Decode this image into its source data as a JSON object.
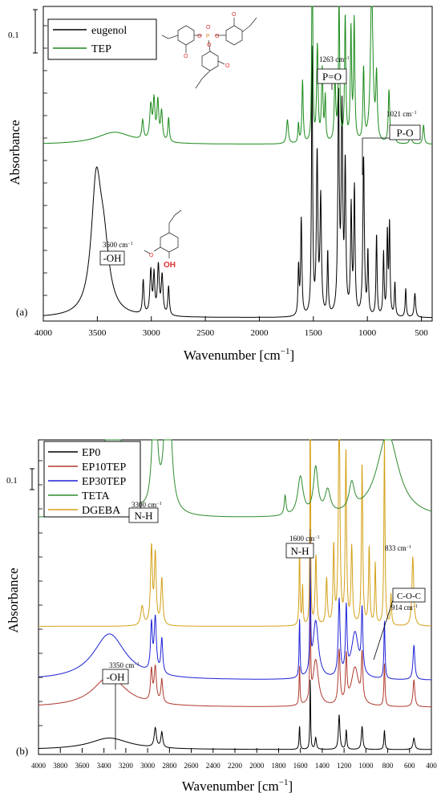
{
  "chart_data": [
    {
      "type": "line",
      "panel_label": "(a)",
      "xlabel": "Wavenumber [cm",
      "xlabel_sup": "−1",
      "xlabel_end": "]",
      "ylabel": "Absorbance",
      "xlim": [
        4000,
        400
      ],
      "x_ticks": [
        "4000",
        "3500",
        "3000",
        "2500",
        "2000",
        "1500",
        "1000",
        "500"
      ],
      "scale_bar_label": "0.1",
      "legend": [
        "eugenol",
        "TEP"
      ],
      "legend_placement": "top-left",
      "colors": {
        "eugenol": "#000000",
        "TEP": "#1a8a1a"
      },
      "series": [
        {
          "name": "eugenol",
          "baseline": 0.0,
          "peaks": [
            [
              3510,
              0.26,
              55
            ],
            [
              3440,
              0.12,
              60
            ],
            [
              3075,
              0.07,
              8
            ],
            [
              3005,
              0.09,
              10
            ],
            [
              2975,
              0.08,
              8
            ],
            [
              2935,
              0.1,
              10
            ],
            [
              2900,
              0.08,
              10
            ],
            [
              2840,
              0.06,
              8
            ],
            [
              1637,
              0.1,
              6
            ],
            [
              1612,
              0.2,
              7
            ],
            [
              1512,
              0.55,
              6
            ],
            [
              1465,
              0.33,
              8
            ],
            [
              1432,
              0.24,
              8
            ],
            [
              1367,
              0.13,
              6
            ],
            [
              1267,
              0.45,
              8
            ],
            [
              1235,
              0.42,
              8
            ],
            [
              1205,
              0.3,
              7
            ],
            [
              1150,
              0.22,
              7
            ],
            [
              1120,
              0.26,
              7
            ],
            [
              1035,
              0.33,
              8
            ],
            [
              995,
              0.13,
              6
            ],
            [
              915,
              0.17,
              6
            ],
            [
              850,
              0.13,
              6
            ],
            [
              815,
              0.17,
              6
            ],
            [
              795,
              0.19,
              6
            ],
            [
              745,
              0.07,
              6
            ],
            [
              645,
              0.06,
              6
            ],
            [
              560,
              0.05,
              8
            ]
          ]
        },
        {
          "name": "TEP",
          "baseline": 0.36,
          "peaks": [
            [
              3340,
              0.025,
              200
            ],
            [
              3080,
              0.04,
              10
            ],
            [
              3005,
              0.07,
              12
            ],
            [
              2975,
              0.08,
              10
            ],
            [
              2940,
              0.08,
              10
            ],
            [
              2905,
              0.06,
              10
            ],
            [
              2840,
              0.05,
              8
            ],
            [
              1740,
              0.05,
              10
            ],
            [
              1638,
              0.04,
              6
            ],
            [
              1600,
              0.13,
              7
            ],
            [
              1510,
              0.5,
              5
            ],
            [
              1463,
              0.2,
              8
            ],
            [
              1418,
              0.15,
              8
            ],
            [
              1390,
              0.09,
              6
            ],
            [
              1300,
              0.13,
              8
            ],
            [
              1262,
              0.3,
              7
            ],
            [
              1205,
              0.26,
              7
            ],
            [
              1152,
              0.23,
              7
            ],
            [
              1122,
              0.25,
              7
            ],
            [
              1035,
              0.15,
              7
            ],
            [
              960,
              0.32,
              14
            ],
            [
              915,
              0.13,
              8
            ],
            [
              800,
              0.11,
              8
            ],
            [
              745,
              0.03,
              6
            ],
            [
              600,
              0.03,
              8
            ],
            [
              480,
              0.04,
              8
            ]
          ]
        }
      ],
      "annotations": [
        {
          "text": "3500 cm",
          "sup": "−1",
          "label": "-OH",
          "x": 3500
        },
        {
          "text": "1263 cm",
          "sup": "−1",
          "label": "P=O",
          "x": 1263
        },
        {
          "text": "1021 cm",
          "sup": "−1",
          "label": "P-O",
          "x": 1021
        }
      ],
      "structure_labels": {
        "oxygen": "O",
        "phosphorus": "P",
        "hydroxyl": "OH"
      }
    },
    {
      "type": "line",
      "panel_label": "(b)",
      "xlabel": "Wavenumber [cm",
      "xlabel_sup": "−1",
      "xlabel_end": "]",
      "ylabel": "Absorbance",
      "xlim": [
        4000,
        400
      ],
      "x_ticks": [
        "4000",
        "3800",
        "3600",
        "3400",
        "3200",
        "3000",
        "2800",
        "2600",
        "2400",
        "2200",
        "2000",
        "1800",
        "1600",
        "1400",
        "1200",
        "1000",
        "800",
        "600",
        "400"
      ],
      "scale_bar_label": "0.1",
      "legend": [
        "EP0",
        "EP10TEP",
        "EP30TEP",
        "TETA",
        "DGEBA"
      ],
      "legend_placement": "top-left",
      "colors": {
        "EP0": "#000000",
        "EP10TEP": "#b03a2e",
        "EP30TEP": "#1f22d6",
        "TETA": "#2e8b2e",
        "DGEBA": "#d4a017"
      },
      "series": [
        {
          "name": "EP0",
          "baseline": 0.0,
          "peaks": [
            [
              3350,
              0.03,
              220
            ],
            [
              2930,
              0.05,
              12
            ],
            [
              2870,
              0.04,
              10
            ],
            [
              1608,
              0.06,
              5
            ],
            [
              1510,
              0.18,
              4
            ],
            [
              1460,
              0.03,
              8
            ],
            [
              1245,
              0.09,
              8
            ],
            [
              1180,
              0.05,
              6
            ],
            [
              1035,
              0.06,
              8
            ],
            [
              830,
              0.05,
              6
            ],
            [
              560,
              0.03,
              10
            ]
          ]
        },
        {
          "name": "EP10TEP",
          "baseline": 0.11,
          "peaks": [
            [
              3350,
              0.08,
              180
            ],
            [
              2965,
              0.08,
              10
            ],
            [
              2930,
              0.09,
              12
            ],
            [
              2870,
              0.06,
              10
            ],
            [
              1608,
              0.1,
              5
            ],
            [
              1510,
              0.3,
              4
            ],
            [
              1460,
              0.12,
              30
            ],
            [
              1245,
              0.14,
              10
            ],
            [
              1180,
              0.12,
              8
            ],
            [
              1100,
              0.1,
              40
            ],
            [
              1035,
              0.12,
              8
            ],
            [
              830,
              0.11,
              6
            ],
            [
              560,
              0.07,
              10
            ]
          ]
        },
        {
          "name": "EP30TEP",
          "baseline": 0.18,
          "peaks": [
            [
              3350,
              0.12,
              180
            ],
            [
              2965,
              0.12,
              10
            ],
            [
              2930,
              0.14,
              12
            ],
            [
              2870,
              0.09,
              10
            ],
            [
              1608,
              0.15,
              5
            ],
            [
              1510,
              0.35,
              4
            ],
            [
              1460,
              0.15,
              30
            ],
            [
              1245,
              0.2,
              10
            ],
            [
              1180,
              0.17,
              8
            ],
            [
              1100,
              0.12,
              40
            ],
            [
              1035,
              0.16,
              8
            ],
            [
              830,
              0.15,
              6
            ],
            [
              560,
              0.09,
              10
            ]
          ]
        },
        {
          "name": "DGEBA",
          "baseline": 0.32,
          "peaks": [
            [
              3050,
              0.05,
              15
            ],
            [
              2965,
              0.2,
              10
            ],
            [
              2930,
              0.18,
              10
            ],
            [
              2870,
              0.12,
              10
            ],
            [
              1608,
              0.2,
              5
            ],
            [
              1580,
              0.1,
              5
            ],
            [
              1510,
              0.6,
              4
            ],
            [
              1458,
              0.18,
              8
            ],
            [
              1360,
              0.12,
              8
            ],
            [
              1295,
              0.2,
              7
            ],
            [
              1245,
              0.6,
              8
            ],
            [
              1183,
              0.45,
              7
            ],
            [
              1130,
              0.2,
              8
            ],
            [
              1035,
              0.42,
              7
            ],
            [
              970,
              0.2,
              7
            ],
            [
              914,
              0.16,
              6
            ],
            [
              830,
              0.48,
              6
            ],
            [
              770,
              0.08,
              6
            ],
            [
              570,
              0.18,
              10
            ]
          ]
        },
        {
          "name": "TETA",
          "baseline": 0.6,
          "peaks": [
            [
              3350,
              0.22,
              60
            ],
            [
              3280,
              0.2,
              60
            ],
            [
              2935,
              0.4,
              22
            ],
            [
              2815,
              0.55,
              26
            ],
            [
              1600,
              0.1,
              30
            ],
            [
              1460,
              0.12,
              25
            ],
            [
              1350,
              0.06,
              30
            ],
            [
              1130,
              0.07,
              30
            ],
            [
              800,
              0.22,
              120
            ],
            [
              1740,
              0.05,
              10
            ]
          ]
        }
      ],
      "annotations": [
        {
          "text": "3300 cm",
          "sup": "−1",
          "label": "N-H",
          "x": 3300
        },
        {
          "text": "1600 cm",
          "sup": "−1",
          "label": "N-H",
          "x": 1600
        },
        {
          "text": "833 cm",
          "sup": "−1",
          "label": "",
          "x": 833
        },
        {
          "text": "914 cm",
          "sup": "−1",
          "label": "C-O-C",
          "x": 914
        },
        {
          "text": "3350 cm",
          "sup": "−1",
          "label": "-OH",
          "x": 3350
        }
      ]
    }
  ]
}
